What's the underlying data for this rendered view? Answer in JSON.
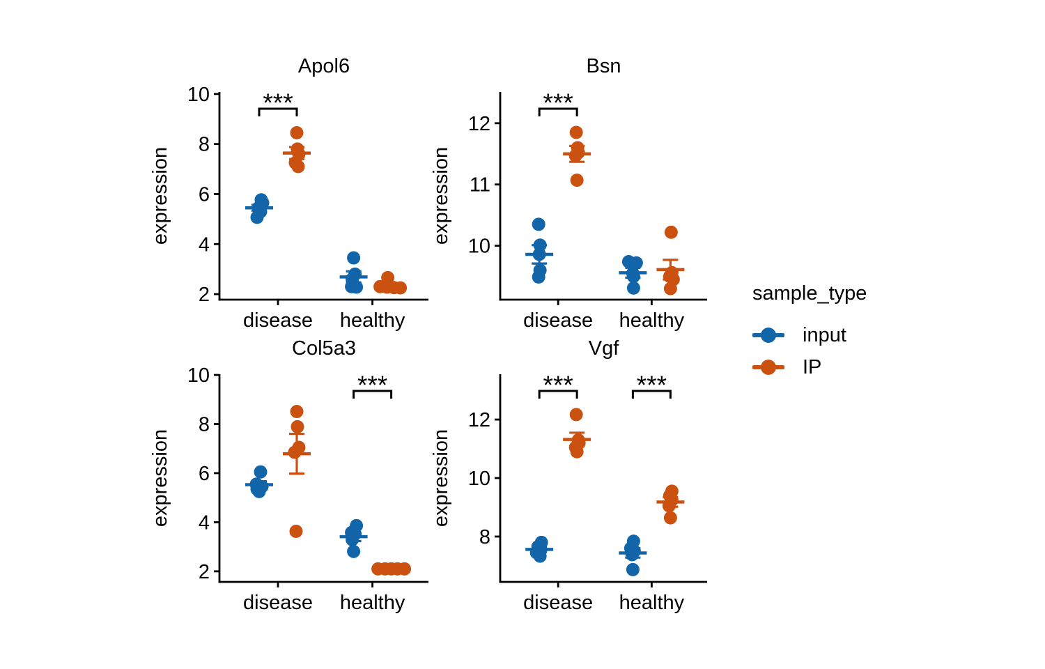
{
  "colors": {
    "input": "#1265A9",
    "IP": "#CB5110",
    "axis": "#000000",
    "text": "#000000",
    "background": "#FFFFFF"
  },
  "legend": {
    "title": "sample_type",
    "entries": [
      {
        "name": "input",
        "color_key": "input"
      },
      {
        "name": "IP",
        "color_key": "IP"
      }
    ]
  },
  "chart_data": {
    "type": "scatter",
    "facets": [
      "Apol6",
      "Bsn",
      "Col5a3",
      "Vgf"
    ],
    "x_categories": [
      "disease",
      "healthy"
    ],
    "series_names": [
      "input",
      "IP"
    ],
    "legend_position": "right",
    "grid": false,
    "summary_marks": "mean crossbar with error bar caps",
    "panels": [
      {
        "title": "Apol6",
        "ylabel": "expression",
        "ylim": [
          1.78,
          10.08
        ],
        "yticks": [
          2,
          4,
          6,
          8,
          10
        ],
        "groups": [
          {
            "series": "input",
            "category": "disease",
            "values": [
              5.07,
              5.3,
              5.45,
              5.65,
              5.77
            ],
            "jitter": [
              -3,
              2,
              -1,
              5,
              3
            ],
            "mean": 5.45,
            "err_low": 5.33,
            "err_high": 5.57
          },
          {
            "series": "input",
            "category": "healthy",
            "values": [
              2.28,
              2.3,
              2.6,
              2.8,
              3.45
            ],
            "jitter": [
              4,
              -3,
              -2,
              2,
              0
            ],
            "mean": 2.69,
            "err_low": 2.47,
            "err_high": 2.91
          },
          {
            "series": "IP",
            "category": "disease",
            "values": [
              7.1,
              7.25,
              7.6,
              7.8,
              8.45
            ],
            "jitter": [
              2,
              -2,
              3,
              1,
              0
            ],
            "mean": 7.64,
            "err_low": 7.4,
            "err_high": 7.88
          },
          {
            "series": "IP",
            "category": "healthy",
            "values": [
              2.25,
              2.26,
              2.28,
              2.3,
              2.66
            ],
            "jitter": [
              13,
              4,
              -6,
              -16,
              -5
            ],
            "mean": 2.35,
            "err_low": 2.27,
            "err_high": 2.43
          }
        ],
        "significance": [
          {
            "category": "disease",
            "label": "***"
          }
        ]
      },
      {
        "title": "Bsn",
        "ylabel": "expression",
        "ylim": [
          9.12,
          12.51
        ],
        "yticks": [
          10,
          11,
          12
        ],
        "groups": [
          {
            "series": "input",
            "category": "disease",
            "values": [
              9.49,
              9.6,
              9.86,
              10.01,
              10.35
            ],
            "jitter": [
              -1,
              1,
              0,
              1,
              -1
            ],
            "mean": 9.86,
            "err_low": 9.71,
            "err_high": 10.01
          },
          {
            "series": "input",
            "category": "healthy",
            "values": [
              9.31,
              9.5,
              9.55,
              9.72,
              9.74
            ],
            "jitter": [
              1,
              1,
              0,
              5,
              -6
            ],
            "mean": 9.56,
            "err_low": 9.48,
            "err_high": 9.64
          },
          {
            "series": "IP",
            "category": "disease",
            "values": [
              11.07,
              11.47,
              11.52,
              11.6,
              11.85
            ],
            "jitter": [
              0,
              -2,
              2,
              1,
              -1
            ],
            "mean": 11.5,
            "err_low": 11.37,
            "err_high": 11.63
          },
          {
            "series": "IP",
            "category": "healthy",
            "values": [
              9.3,
              9.45,
              9.5,
              9.56,
              10.22
            ],
            "jitter": [
              0,
              4,
              -1,
              2,
              1
            ],
            "mean": 9.61,
            "err_low": 9.45,
            "err_high": 9.77
          }
        ],
        "significance": [
          {
            "category": "disease",
            "label": "***"
          }
        ]
      },
      {
        "title": "Col5a3",
        "ylabel": "expression",
        "ylim": [
          1.57,
          10.03
        ],
        "yticks": [
          2,
          4,
          6,
          8,
          10
        ],
        "groups": [
          {
            "series": "input",
            "category": "disease",
            "values": [
              5.25,
              5.35,
              5.45,
              5.55,
              6.05
            ],
            "jitter": [
              0,
              -3,
              4,
              -4,
              2
            ],
            "mean": 5.53,
            "err_low": 5.39,
            "err_high": 5.67
          },
          {
            "series": "input",
            "category": "healthy",
            "values": [
              2.81,
              3.29,
              3.52,
              3.58,
              3.86
            ],
            "jitter": [
              0,
              -2,
              2,
              -3,
              4
            ],
            "mean": 3.41,
            "err_low": 3.23,
            "err_high": 3.59
          },
          {
            "series": "IP",
            "category": "disease",
            "values": [
              3.63,
              6.85,
              7.05,
              7.89,
              8.51
            ],
            "jitter": [
              -1,
              -3,
              3,
              1,
              0
            ],
            "mean": 6.79,
            "err_low": 5.98,
            "err_high": 7.6
          },
          {
            "series": "IP",
            "category": "healthy",
            "values": [
              2.1,
              2.1,
              2.1,
              2.1,
              2.1
            ],
            "jitter": [
              -19,
              -9,
              0,
              9,
              19
            ],
            "mean": 2.1,
            "err_low": 2.07,
            "err_high": 2.13
          }
        ],
        "significance": [
          {
            "category": "healthy",
            "label": "***"
          }
        ]
      },
      {
        "title": "Vgf",
        "ylabel": "expression",
        "ylim": [
          6.45,
          13.55
        ],
        "yticks": [
          8,
          10,
          12
        ],
        "groups": [
          {
            "series": "input",
            "category": "disease",
            "values": [
              7.33,
              7.45,
              7.55,
              7.65,
              7.8
            ],
            "jitter": [
              1,
              -4,
              2,
              -2,
              3
            ],
            "mean": 7.56,
            "err_low": 7.47,
            "err_high": 7.65
          },
          {
            "series": "input",
            "category": "healthy",
            "values": [
              6.87,
              7.38,
              7.5,
              7.6,
              7.84
            ],
            "jitter": [
              0,
              -1,
              2,
              -3,
              1
            ],
            "mean": 7.44,
            "err_low": 7.28,
            "err_high": 7.6
          },
          {
            "series": "IP",
            "category": "disease",
            "values": [
              10.9,
              11.05,
              11.2,
              11.3,
              12.17
            ],
            "jitter": [
              0,
              -2,
              3,
              2,
              -1
            ],
            "mean": 11.32,
            "err_low": 11.09,
            "err_high": 11.55
          },
          {
            "series": "IP",
            "category": "healthy",
            "values": [
              8.64,
              9.05,
              9.25,
              9.4,
              9.55
            ],
            "jitter": [
              0,
              -2,
              2,
              -1,
              2
            ],
            "mean": 9.18,
            "err_low": 9.02,
            "err_high": 9.34
          }
        ],
        "significance": [
          {
            "category": "disease",
            "label": "***"
          },
          {
            "category": "healthy",
            "label": "***"
          }
        ]
      }
    ]
  }
}
